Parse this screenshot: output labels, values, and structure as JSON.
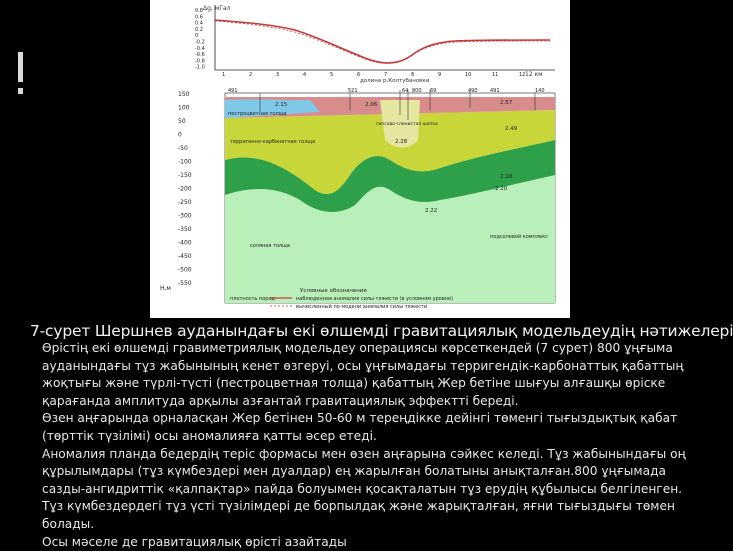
{
  "caption": "7-сурет Шершнев ауданындағы екі өлшемді гравитациялық модельдеудің нәтижелері",
  "paragraphs": [
    "Өрістің екі өлшемді гравиметриялық модельдеу операциясы көрсеткендей (7 сурет) 800 ұңғыма ауданындағы тұз жабынының кенет өзгеруі, осы ұңғымадағы терригендік-карбонаттық қабаттың жоқтығы және түрлі-түсті (пестроцветная толща) қабаттың Жер бетіне шығуы алғашқы өріске қарағанда амплитуда арқылы азғантай гравитациялық эффектті береді.",
    "Өзен аңғарында орналасқан Жер бетінен 50-60 м тереңдікке дейінгі төменгі тығыздықтық қабат (төрттік түзілімі) осы аномалияға қатты әсер етеді.",
    "Аномалия планда бедердің теріс формасы мен өзен аңғарына сәйкес келеді. Тұз жабынындағы оң құрылымдары (тұз күмбездері мен дуалдар) ең жарылған болатыны анықталған.800 ұңғымада сазды-ангидриттік «қалпақтар» пайда болуымен қосақталатын тұз ерудің құбылысы белгіленген. Тұз күмбездердегі тұз үсті түзілімдері де борпылдақ және жарықталған, яғни тығыздығы төмен болады.",
    "Осы мәселе де гравитациялық өрісті азайтады"
  ],
  "figure": {
    "graph_axis_label": "Δg, мГал",
    "graph_y_ticks": [
      "0.8",
      "0.6",
      "0.4",
      "0.2",
      "0",
      "-0.2",
      "-0.4",
      "-0.6",
      "-0.8",
      "-1.0"
    ],
    "graph_x_ticks": [
      "1",
      "2",
      "3",
      "4",
      "5",
      "6",
      "7",
      "8",
      "9",
      "10",
      "11",
      "12"
    ],
    "graph_x_unit": "12 км",
    "valley_label": "долина\nр.Колтубановки",
    "section_y_ticks": [
      "150",
      "100",
      "50",
      "0",
      "-50",
      "-100",
      "-150",
      "-200",
      "-250",
      "-300",
      "-350",
      "-400",
      "-450",
      "-500",
      "-550"
    ],
    "section_y_unit": "Н,м",
    "wells": [
      "491",
      "521",
      "64",
      "800",
      "69",
      "490",
      "491",
      "140"
    ],
    "densities": [
      "2.15",
      "2.06",
      "2.28",
      "2.57",
      "2.49",
      "2.20",
      "2.18",
      "2.22"
    ],
    "layer_labels": [
      "пестроцветная толща",
      "терригенно-карбонатная толща",
      "гипсово-глинистая шапка",
      "соляная толща",
      "подсолевой комплекс",
      "плотность пород"
    ],
    "legend_title": "Условные обозначения",
    "legend_items": [
      "наблюденная аномалия силы тяжести (в условном уровне)",
      "вычисленный по модели аномалия силы тяжести"
    ]
  }
}
